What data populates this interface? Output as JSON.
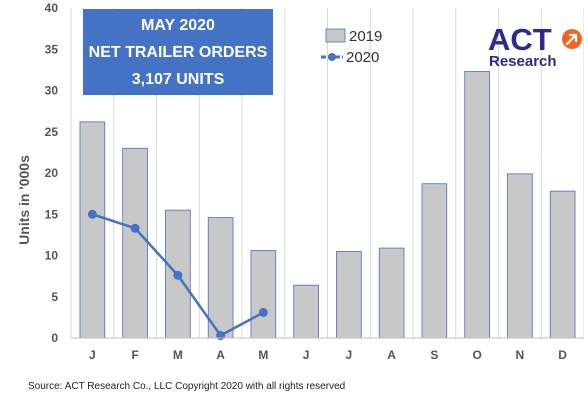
{
  "chart_data": {
    "type": "bar",
    "title_box": {
      "lines": [
        "MAY 2020",
        "NET TRAILER ORDERS",
        "3,107 UNITS"
      ],
      "background": "#4472c4"
    },
    "categories": [
      "J",
      "F",
      "M",
      "A",
      "M",
      "J",
      "J",
      "A",
      "S",
      "O",
      "N",
      "D"
    ],
    "series": [
      {
        "name": "2019",
        "kind": "bar",
        "color": "#c8c8c8",
        "edge_color": "#4472c4",
        "values": [
          26.2,
          23.0,
          15.5,
          14.6,
          10.6,
          6.4,
          10.5,
          10.9,
          18.7,
          32.3,
          19.9,
          17.8
        ]
      },
      {
        "name": "2020",
        "kind": "line",
        "color": "#4472c4",
        "values": [
          15.0,
          13.3,
          7.6,
          0.3,
          3.1,
          null,
          null,
          null,
          null,
          null,
          null,
          null
        ]
      }
    ],
    "ylabel": "Units in '000s",
    "ylim": [
      0,
      40
    ],
    "yticks": [
      0,
      5,
      10,
      15,
      20,
      25,
      30,
      35,
      40
    ],
    "grid": "vertical-category",
    "legend_position": "top-center"
  },
  "logo": {
    "text_top": "ACT",
    "text_bottom": "Research",
    "accent_color": "#f26522",
    "brand_color": "#2e2a8a"
  },
  "source_note": "Source: ACT Research Co., LLC  Copyright 2020 with all rights reserved"
}
